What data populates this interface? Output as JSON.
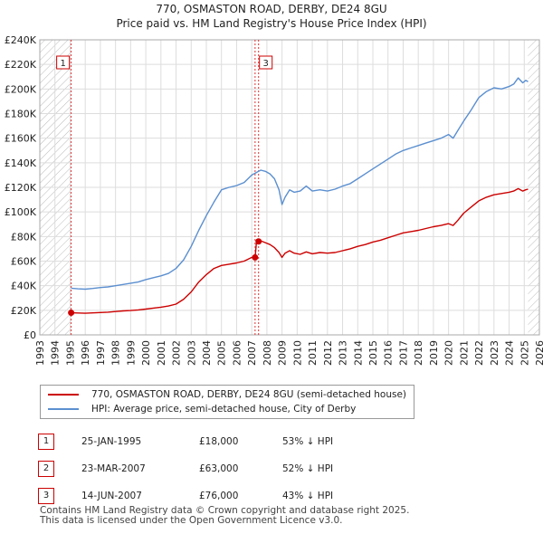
{
  "title_line1": "770, OSMASTON ROAD, DERBY, DE24 8GU",
  "title_line2": "Price paid vs. HM Land Registry's House Price Index (HPI)",
  "chart_data": {
    "type": "line",
    "title": "770, OSMASTON ROAD, DERBY, DE24 8GU",
    "subtitle": "Price paid vs. HM Land Registry's House Price Index (HPI)",
    "xlabel": "",
    "ylabel": "",
    "xlim": [
      1993,
      2026
    ],
    "ylim": [
      0,
      240000
    ],
    "x_ticks": [
      1993,
      1994,
      1995,
      1996,
      1997,
      1998,
      1999,
      2000,
      2001,
      2002,
      2003,
      2004,
      2005,
      2006,
      2007,
      2008,
      2009,
      2010,
      2011,
      2012,
      2013,
      2014,
      2015,
      2016,
      2017,
      2018,
      2019,
      2020,
      2021,
      2022,
      2023,
      2024,
      2025,
      2026
    ],
    "y_ticks": [
      0,
      20000,
      40000,
      60000,
      80000,
      100000,
      120000,
      140000,
      160000,
      180000,
      200000,
      220000,
      240000
    ],
    "y_tick_labels": [
      "£0",
      "£20K",
      "£40K",
      "£60K",
      "£80K",
      "£100K",
      "£120K",
      "£140K",
      "£160K",
      "£180K",
      "£200K",
      "£220K",
      "£240K"
    ],
    "grid": true,
    "hatched_regions": [
      [
        1993,
        1995.07
      ],
      [
        2025.25,
        2026
      ]
    ],
    "colors": {
      "property": "#cc0000",
      "hpi": "#5b8fd0",
      "marker": "#cc0000",
      "grid": "#dddddd",
      "hatch": "#bbbbbb"
    },
    "series": [
      {
        "name": "770, OSMASTON ROAD, DERBY, DE24 8GU (semi-detached house)",
        "x": [
          1995.07,
          1995.5,
          1996,
          1996.5,
          1997,
          1997.5,
          1998,
          1998.5,
          1999,
          1999.5,
          2000,
          2000.5,
          2001,
          2001.5,
          2002,
          2002.5,
          2003,
          2003.5,
          2004,
          2004.5,
          2005,
          2005.5,
          2006,
          2006.5,
          2007.0,
          2007.22,
          2007.3,
          2007.45,
          2007.6,
          2007.9,
          2008.2,
          2008.5,
          2008.8,
          2009.0,
          2009.2,
          2009.5,
          2009.8,
          2010.2,
          2010.6,
          2011,
          2011.5,
          2012,
          2012.5,
          2013,
          2013.5,
          2014,
          2014.5,
          2015,
          2015.5,
          2016,
          2016.5,
          2017,
          2017.5,
          2018,
          2018.5,
          2019,
          2019.5,
          2020,
          2020.3,
          2020.6,
          2021,
          2021.5,
          2022,
          2022.5,
          2023,
          2023.5,
          2024,
          2024.3,
          2024.6,
          2024.9,
          2025.1,
          2025.25
        ],
        "values": [
          18000,
          17800,
          17600,
          17900,
          18200,
          18500,
          19000,
          19500,
          19800,
          20300,
          21000,
          21800,
          22500,
          23500,
          25000,
          29000,
          35000,
          43000,
          49000,
          54000,
          56500,
          57500,
          58500,
          60000,
          63000,
          63000,
          74000,
          76000,
          76500,
          75000,
          73500,
          71000,
          67000,
          63000,
          66500,
          68500,
          66500,
          65500,
          67500,
          66000,
          67000,
          66500,
          67000,
          68500,
          70000,
          72000,
          73500,
          75500,
          77000,
          79000,
          81000,
          83000,
          84000,
          85000,
          86500,
          88000,
          89000,
          90500,
          89000,
          93000,
          99000,
          104000,
          109000,
          112000,
          114000,
          115000,
          116000,
          117000,
          119000,
          117000,
          118000,
          118500
        ]
      },
      {
        "name": "HPI: Average price, semi-detached house, City of Derby",
        "x": [
          1995.07,
          1995.5,
          1996,
          1996.5,
          1997,
          1997.5,
          1998,
          1998.5,
          1999,
          1999.5,
          2000,
          2000.5,
          2001,
          2001.5,
          2002,
          2002.5,
          2003,
          2003.5,
          2004,
          2004.5,
          2005,
          2005.5,
          2006,
          2006.5,
          2007.0,
          2007.22,
          2007.45,
          2007.6,
          2007.9,
          2008.2,
          2008.5,
          2008.8,
          2009.0,
          2009.2,
          2009.5,
          2009.8,
          2010.2,
          2010.6,
          2011,
          2011.5,
          2012,
          2012.5,
          2013,
          2013.5,
          2014,
          2014.5,
          2015,
          2015.5,
          2016,
          2016.5,
          2017,
          2017.5,
          2018,
          2018.5,
          2019,
          2019.5,
          2020,
          2020.3,
          2020.6,
          2021,
          2021.5,
          2022,
          2022.5,
          2023,
          2023.5,
          2024,
          2024.3,
          2024.6,
          2024.9,
          2025.1,
          2025.25
        ],
        "values": [
          38000,
          37500,
          37200,
          37800,
          38500,
          39000,
          40000,
          41000,
          42000,
          43000,
          45000,
          46500,
          48000,
          50000,
          54000,
          61000,
          72000,
          85000,
          97000,
          108000,
          118000,
          120000,
          121500,
          124000,
          130000,
          131500,
          133000,
          134000,
          133000,
          131000,
          127000,
          118000,
          106000,
          112000,
          118000,
          116000,
          117000,
          121000,
          117000,
          118000,
          117000,
          118500,
          121000,
          123000,
          127000,
          131000,
          135000,
          139000,
          143000,
          147000,
          150000,
          152000,
          154000,
          156000,
          158000,
          160000,
          163000,
          160000,
          166000,
          174000,
          183000,
          193000,
          198000,
          201000,
          200000,
          202000,
          204000,
          209000,
          205000,
          207000,
          206000
        ]
      }
    ],
    "sale_markers": [
      {
        "label": "1",
        "x": 1995.07,
        "value": 18000
      },
      {
        "label": "2",
        "x": 2007.22,
        "value": 63000
      },
      {
        "label": "3",
        "x": 2007.45,
        "value": 76000
      }
    ],
    "chart_badges": [
      "1",
      "3"
    ]
  },
  "legend": {
    "property": "770, OSMASTON ROAD, DERBY, DE24 8GU (semi-detached house)",
    "hpi": "HPI: Average price, semi-detached house, City of Derby"
  },
  "sales": [
    {
      "num": "1",
      "date": "25-JAN-1995",
      "price": "£18,000",
      "hpi": "53% ↓ HPI"
    },
    {
      "num": "2",
      "date": "23-MAR-2007",
      "price": "£63,000",
      "hpi": "52% ↓ HPI"
    },
    {
      "num": "3",
      "date": "14-JUN-2007",
      "price": "£76,000",
      "hpi": "43% ↓ HPI"
    }
  ],
  "footer": {
    "line1": "Contains HM Land Registry data © Crown copyright and database right 2025.",
    "line2": "This data is licensed under the Open Government Licence v3.0."
  }
}
